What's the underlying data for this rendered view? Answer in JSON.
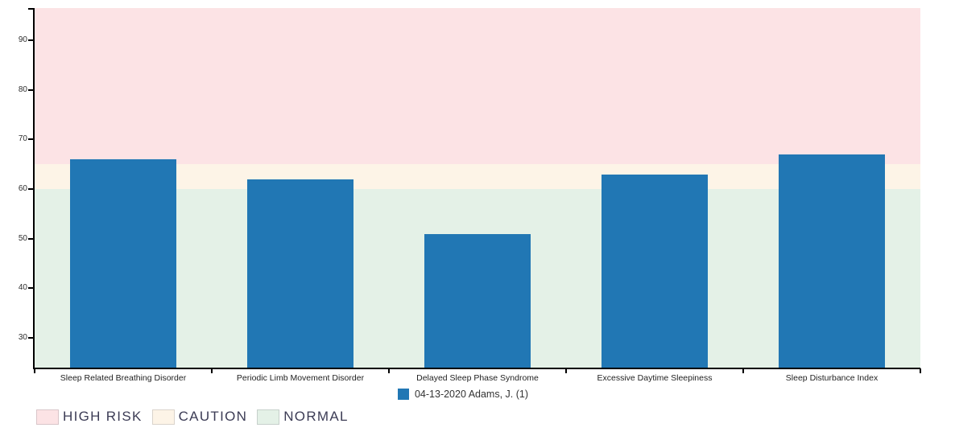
{
  "chart_data": {
    "type": "bar",
    "title": "",
    "categories": [
      "Sleep Related Breathing Disorder",
      "Periodic Limb Movement Disorder",
      "Delayed Sleep Phase Syndrome",
      "Excessive Daytime Sleepiness",
      "Sleep Disturbance Index"
    ],
    "series": [
      {
        "name": "04-13-2020 Adams, J. (1)",
        "color": "#2177b4",
        "values": [
          66,
          62,
          51,
          63,
          67
        ]
      }
    ],
    "xlabel": "",
    "ylabel": "",
    "ylim": [
      24,
      96.5
    ],
    "yticks": [
      30,
      40,
      50,
      60,
      70,
      80,
      90
    ],
    "grid": false,
    "legend_position": "bottom-center",
    "zones": [
      {
        "label": "HIGH RISK",
        "from": 65,
        "to": 96.5,
        "color": "#fce3e5"
      },
      {
        "label": "CAUTION",
        "from": 60,
        "to": 65,
        "color": "#fdf4e7"
      },
      {
        "label": "NORMAL",
        "from": 24,
        "to": 60,
        "color": "#e4f1e7"
      }
    ]
  }
}
